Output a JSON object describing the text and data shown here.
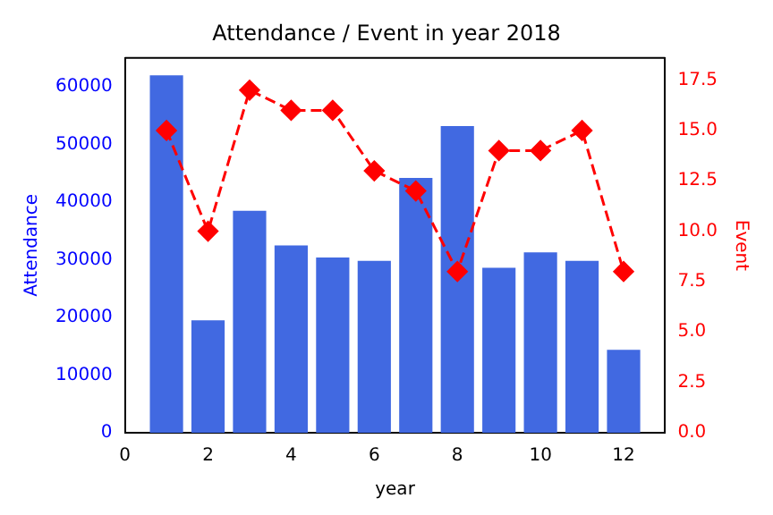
{
  "chart_data": {
    "type": "bar",
    "title": "Attendance / Event in year 2018",
    "xlabel": "year",
    "ylabel": "Attendance",
    "y2label": "Event",
    "x": [
      1,
      2,
      3,
      4,
      5,
      6,
      7,
      8,
      9,
      10,
      11,
      12
    ],
    "series": [
      {
        "color": "#4169e1",
        "values": [
          62000,
          19500,
          38500,
          32500,
          30400,
          29800,
          44200,
          53200,
          28600,
          31300,
          29800,
          14400
        ]
      },
      {
        "type": "line",
        "axis": "y2",
        "color": "#ff0000",
        "marker": "diamond",
        "line_style": "dashed",
        "values": [
          15,
          10,
          17,
          16,
          16,
          13,
          12,
          8,
          14,
          14,
          15,
          8
        ]
      }
    ],
    "xlim": [
      0,
      13
    ],
    "xticks": [
      0,
      2,
      4,
      6,
      8,
      10,
      12
    ],
    "ylim": [
      0,
      65000
    ],
    "yticks": [
      0,
      10000,
      20000,
      30000,
      40000,
      50000,
      60000
    ],
    "y2lim": [
      0,
      18.6
    ],
    "y2ticks": [
      {
        "value": 0,
        "label": "0.0"
      },
      {
        "value": 2.5,
        "label": "2.5"
      },
      {
        "value": 5,
        "label": "5.0"
      },
      {
        "value": 7.5,
        "label": "7.5"
      },
      {
        "value": 10,
        "label": "10.0"
      },
      {
        "value": 12.5,
        "label": "12.5"
      },
      {
        "value": 15,
        "label": "15.0"
      },
      {
        "value": 17.5,
        "label": "17.5"
      }
    ],
    "grid": false,
    "legend": false
  }
}
